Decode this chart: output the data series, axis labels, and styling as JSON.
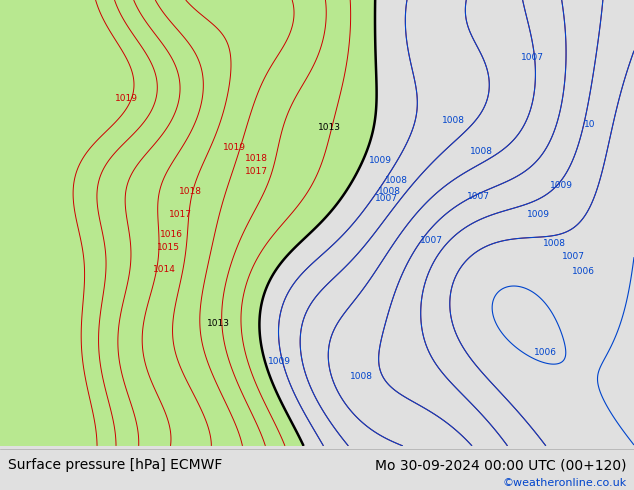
{
  "title_left": "Surface pressure [hPa] ECMWF",
  "title_right": "Mo 30-09-2024 00:00 UTC (00+120)",
  "copyright": "©weatheronline.co.uk",
  "bg_color": "#e0e0e0",
  "map_bg_color": "#d4d4d4",
  "green_fill_color": "#b8e890",
  "contour_red_color": "#cc0000",
  "contour_blue_color": "#0044cc",
  "contour_black_color": "#000000",
  "text_color": "#000000",
  "title_fontsize": 10,
  "copyright_color": "#0044cc",
  "figsize": [
    6.34,
    4.9
  ],
  "dpi": 100
}
